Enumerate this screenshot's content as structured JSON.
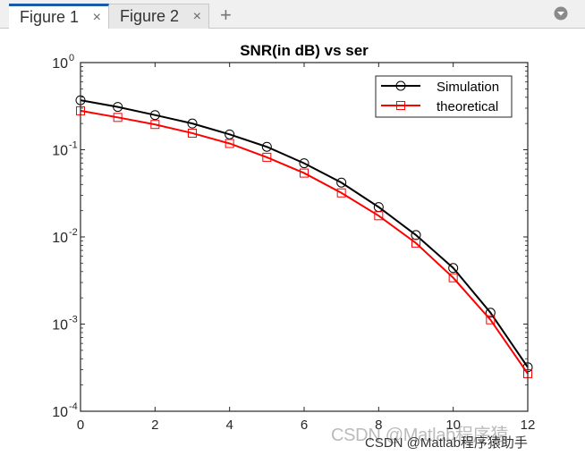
{
  "tabs": [
    {
      "label": "Figure 1",
      "active": true
    },
    {
      "label": "Figure 2",
      "active": false
    }
  ],
  "add_tab_label": "+",
  "close_label": "×",
  "watermark": "CSDN @Matlab程序猿助手",
  "watermark_faint": "CSDN @Matlab程序猿",
  "colors": {
    "simulation": "#000000",
    "theoretical": "#ff0000",
    "axis": "#262626"
  },
  "chart_data": {
    "type": "line",
    "title": "SNR(in dB) vs ser",
    "xlabel": "",
    "ylabel": "",
    "xscale": "linear",
    "yscale": "log",
    "xlim": [
      0,
      12
    ],
    "ylim": [
      0.0001,
      1
    ],
    "xticks": [
      0,
      2,
      4,
      6,
      8,
      10,
      12
    ],
    "yticks": [
      {
        "value": 1,
        "base": "10",
        "exp": "0"
      },
      {
        "value": 0.1,
        "base": "10",
        "exp": "-1"
      },
      {
        "value": 0.01,
        "base": "10",
        "exp": "-2"
      },
      {
        "value": 0.001,
        "base": "10",
        "exp": "-3"
      },
      {
        "value": 0.0001,
        "base": "10",
        "exp": "-4"
      }
    ],
    "legend_position": "top-right",
    "x": [
      0,
      1,
      2,
      3,
      4,
      5,
      6,
      7,
      8,
      9,
      10,
      11,
      12
    ],
    "series": [
      {
        "name": "Simulation",
        "marker": "circle",
        "color": "#000000",
        "values": [
          0.37,
          0.31,
          0.25,
          0.2,
          0.15,
          0.108,
          0.07,
          0.042,
          0.022,
          0.0105,
          0.0044,
          0.00135,
          0.00032
        ]
      },
      {
        "name": "theoretical",
        "marker": "square",
        "color": "#ff0000",
        "values": [
          0.28,
          0.235,
          0.195,
          0.155,
          0.118,
          0.082,
          0.054,
          0.032,
          0.0175,
          0.0085,
          0.0034,
          0.00112,
          0.00027
        ]
      }
    ]
  }
}
